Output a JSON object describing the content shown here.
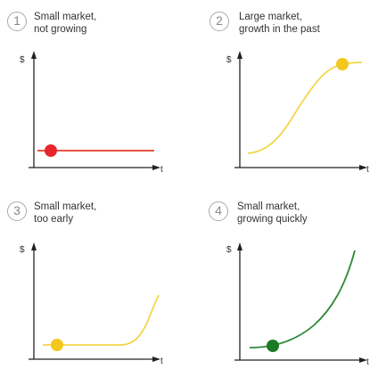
{
  "panels": [
    {
      "number": "1",
      "caption_line1": "Small market,",
      "caption_line2": "not growing",
      "y_axis_label": "$",
      "x_axis_label": "t",
      "curve_color": "#e03b2a",
      "dot_color": "#e8252a",
      "shape": "flat"
    },
    {
      "number": "2",
      "caption_line1": "Large market,",
      "caption_line2": "growth in the past",
      "y_axis_label": "$",
      "x_axis_label": "t",
      "curve_color": "#f3d54c",
      "dot_color": "#f3c81c",
      "shape": "s-curve"
    },
    {
      "number": "3",
      "caption_line1": "Small market,",
      "caption_line2": "too early",
      "y_axis_label": "$",
      "x_axis_label": "t",
      "curve_color": "#f3d54c",
      "dot_color": "#f3c81c",
      "shape": "late-rise"
    },
    {
      "number": "4",
      "caption_line1": "Small market,",
      "caption_line2": "growing quickly",
      "y_axis_label": "$",
      "x_axis_label": "t",
      "curve_color": "#2f8a36",
      "dot_color": "#1b7a24",
      "shape": "exponential"
    }
  ]
}
